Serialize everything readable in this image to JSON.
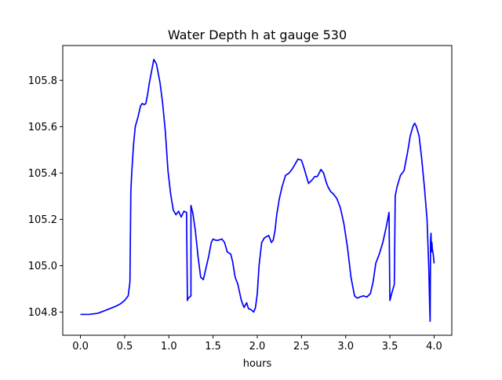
{
  "chart_data": {
    "type": "line",
    "title": "Water Depth h at gauge 530",
    "xlabel": "hours",
    "ylabel": "",
    "xlim": [
      -0.2,
      4.2
    ],
    "ylim": [
      104.7,
      105.95
    ],
    "xticks": [
      "0.0",
      "0.5",
      "1.0",
      "1.5",
      "2.0",
      "2.5",
      "3.0",
      "3.5",
      "4.0"
    ],
    "yticks": [
      "104.8",
      "105.0",
      "105.2",
      "105.4",
      "105.6",
      "105.8"
    ],
    "grid": false,
    "legend": false,
    "series": [
      {
        "color": "#0000ff",
        "x": [
          0.0,
          0.1,
          0.2,
          0.3,
          0.4,
          0.45,
          0.5,
          0.54,
          0.56,
          0.57,
          0.57,
          0.58,
          0.6,
          0.62,
          0.65,
          0.68,
          0.7,
          0.72,
          0.74,
          0.76,
          0.78,
          0.8,
          0.83,
          0.86,
          0.88,
          0.9,
          0.93,
          0.96,
          0.99,
          1.02,
          1.05,
          1.08,
          1.11,
          1.14,
          1.17,
          1.2,
          1.21,
          1.21,
          1.22,
          1.25,
          1.25,
          1.27,
          1.3,
          1.33,
          1.36,
          1.39,
          1.42,
          1.45,
          1.48,
          1.5,
          1.53,
          1.56,
          1.6,
          1.63,
          1.66,
          1.7,
          1.72,
          1.75,
          1.78,
          1.82,
          1.85,
          1.88,
          1.9,
          1.93,
          1.96,
          1.98,
          2.0,
          2.02,
          2.05,
          2.08,
          2.1,
          2.13,
          2.16,
          2.18,
          2.2,
          2.22,
          2.25,
          2.28,
          2.32,
          2.36,
          2.4,
          2.43,
          2.46,
          2.5,
          2.53,
          2.56,
          2.58,
          2.62,
          2.65,
          2.68,
          2.7,
          2.72,
          2.75,
          2.78,
          2.8,
          2.83,
          2.86,
          2.9,
          2.94,
          2.98,
          3.02,
          3.06,
          3.1,
          3.13,
          3.16,
          3.2,
          3.24,
          3.28,
          3.31,
          3.34,
          3.38,
          3.42,
          3.46,
          3.49,
          3.5,
          3.5,
          3.52,
          3.55,
          3.56,
          3.56,
          3.58,
          3.62,
          3.66,
          3.7,
          3.73,
          3.76,
          3.78,
          3.8,
          3.83,
          3.86,
          3.89,
          3.92,
          3.94,
          3.95,
          3.955,
          3.96,
          3.965,
          3.97,
          3.975,
          3.98,
          3.99,
          4.0
        ],
        "y": [
          104.79,
          104.79,
          104.795,
          104.81,
          104.825,
          104.835,
          104.85,
          104.87,
          104.93,
          105.32,
          105.32,
          105.4,
          105.52,
          105.6,
          105.64,
          105.69,
          105.7,
          105.695,
          105.7,
          105.74,
          105.79,
          105.83,
          105.89,
          105.87,
          105.83,
          105.79,
          105.7,
          105.58,
          105.41,
          105.31,
          105.24,
          105.22,
          105.235,
          105.21,
          105.235,
          105.23,
          104.85,
          104.85,
          104.86,
          104.87,
          105.26,
          105.23,
          105.15,
          105.04,
          104.95,
          104.94,
          104.99,
          105.04,
          105.1,
          105.115,
          105.11,
          105.11,
          105.115,
          105.1,
          105.06,
          105.05,
          105.02,
          104.95,
          104.92,
          104.85,
          104.82,
          104.84,
          104.815,
          104.81,
          104.8,
          104.82,
          104.88,
          105.0,
          105.1,
          105.12,
          105.125,
          105.13,
          105.1,
          105.11,
          105.15,
          105.22,
          105.29,
          105.34,
          105.39,
          105.4,
          105.42,
          105.44,
          105.46,
          105.455,
          105.42,
          105.38,
          105.355,
          105.37,
          105.385,
          105.385,
          105.4,
          105.415,
          105.4,
          105.36,
          105.34,
          105.32,
          105.31,
          105.29,
          105.25,
          105.18,
          105.08,
          104.95,
          104.87,
          104.86,
          104.865,
          104.87,
          104.865,
          104.88,
          104.93,
          105.01,
          105.05,
          105.1,
          105.17,
          105.23,
          104.85,
          104.85,
          104.88,
          104.92,
          105.3,
          105.3,
          105.34,
          105.39,
          105.41,
          105.49,
          105.56,
          105.6,
          105.615,
          105.6,
          105.56,
          105.46,
          105.34,
          105.2,
          104.99,
          104.82,
          104.76,
          105.11,
          105.14,
          105.06,
          105.1,
          105.07,
          105.05,
          105.01
        ]
      }
    ]
  }
}
